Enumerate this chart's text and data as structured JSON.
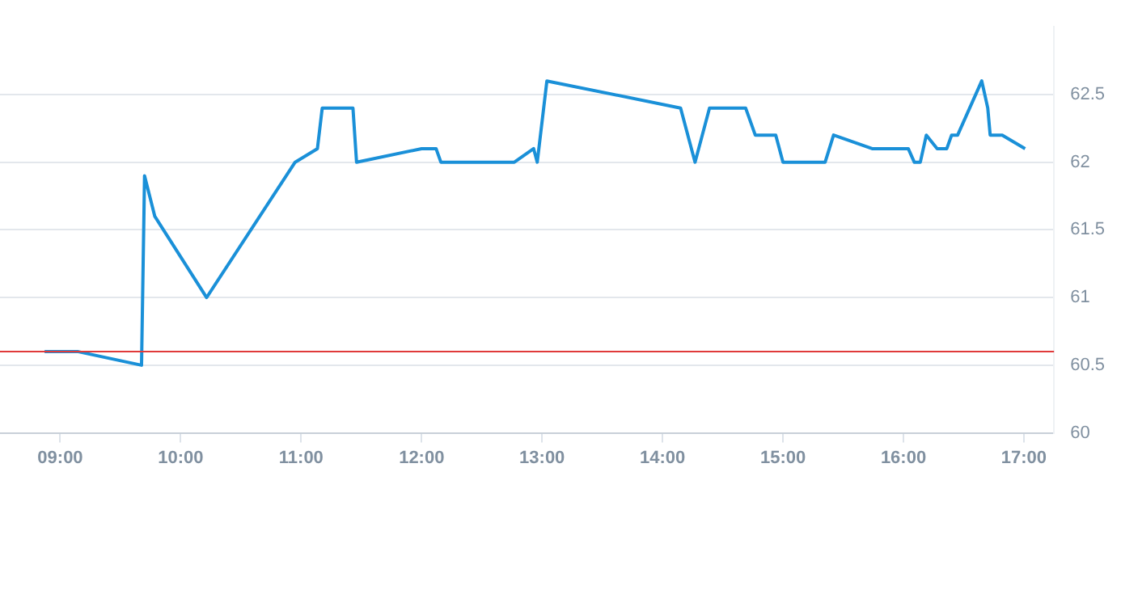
{
  "chart_data": {
    "type": "line",
    "x": [
      8.87,
      9.15,
      9.675,
      9.7,
      9.785,
      10.215,
      10.95,
      11.135,
      11.175,
      11.43,
      11.46,
      12.0,
      12.12,
      12.16,
      12.77,
      12.93,
      12.96,
      13.04,
      14.15,
      14.27,
      14.39,
      14.69,
      14.77,
      14.94,
      15.0,
      15.35,
      15.42,
      15.74,
      16.04,
      16.09,
      16.14,
      16.19,
      16.28,
      16.36,
      16.4,
      16.45,
      16.65,
      16.7,
      16.72,
      16.82,
      17.01
    ],
    "series": [
      {
        "color": "#1a90d8",
        "values": [
          60.6,
          60.6,
          60.5,
          61.9,
          61.6,
          61.0,
          62.0,
          62.1,
          62.4,
          62.4,
          62.0,
          62.1,
          62.1,
          62.0,
          62.0,
          62.1,
          62.0,
          62.6,
          62.4,
          62.0,
          62.4,
          62.4,
          62.2,
          62.2,
          62.0,
          62.0,
          62.2,
          62.1,
          62.1,
          62.0,
          62.0,
          62.2,
          62.1,
          62.1,
          62.2,
          62.2,
          62.6,
          62.4,
          62.2,
          62.2,
          62.1
        ]
      }
    ],
    "xlim": [
      8.5,
      17.25
    ],
    "xticks": [
      {
        "value": 9,
        "label": "09:00"
      },
      {
        "value": 10,
        "label": "10:00"
      },
      {
        "value": 11,
        "label": "11:00"
      },
      {
        "value": 12,
        "label": "12:00"
      },
      {
        "value": 13,
        "label": "13:00"
      },
      {
        "value": 14,
        "label": "14:00"
      },
      {
        "value": 15,
        "label": "15:00"
      },
      {
        "value": 16,
        "label": "16:00"
      },
      {
        "value": 17,
        "label": "17:00"
      }
    ],
    "ylim": [
      60,
      63
    ],
    "yticks": [
      60,
      60.5,
      61,
      61.5,
      62,
      62.5
    ],
    "ref_lines": [
      {
        "axis": "y",
        "value": 60.6,
        "color": "#e03a3a"
      }
    ],
    "grid": "y",
    "legend": false,
    "marker": "none",
    "line_style": "solid"
  }
}
